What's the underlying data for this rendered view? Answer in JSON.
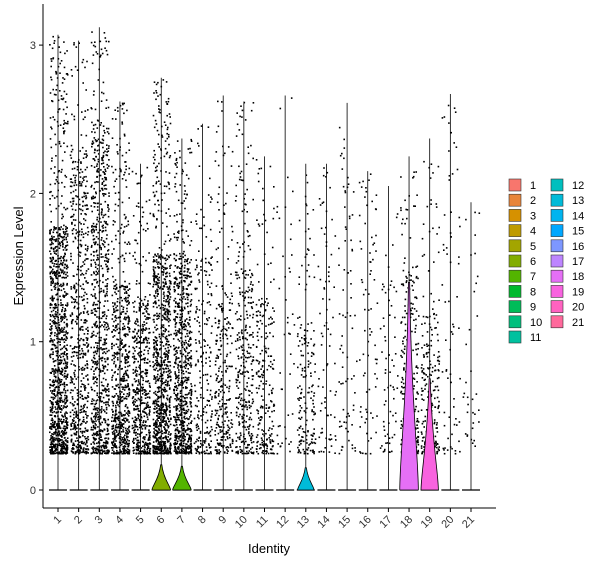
{
  "chart_data": {
    "type": "violin",
    "title": "",
    "xlabel": "Identity",
    "ylabel": "Expression Level",
    "ylim": [
      -0.15,
      3.15
    ],
    "yticks": [
      0,
      1,
      2,
      3
    ],
    "grid": false,
    "legend_position": "right",
    "legend_columns": 2,
    "categories": [
      "1",
      "2",
      "3",
      "4",
      "5",
      "6",
      "7",
      "8",
      "9",
      "10",
      "11",
      "12",
      "13",
      "14",
      "15",
      "16",
      "17",
      "18",
      "19",
      "20",
      "21"
    ],
    "colors": [
      "#F8766D",
      "#E8853A",
      "#D69100",
      "#BF9B00",
      "#A3A500",
      "#82AD00",
      "#53B400",
      "#00B92E",
      "#00BC59",
      "#00BF7D",
      "#00C19F",
      "#00BFBE",
      "#00BBD8",
      "#00B4EF",
      "#00A8FF",
      "#7D97FF",
      "#BD85FF",
      "#E56FF6",
      "#F863DF",
      "#FF62C0",
      "#FF699C"
    ],
    "series": [
      {
        "name": "1",
        "max": 3.07,
        "density": 1.0,
        "upper": 1.8,
        "violin_width": 0,
        "violin_height": 0
      },
      {
        "name": "2",
        "max": 3.03,
        "density": 0.55,
        "upper": 2.3,
        "violin_width": 0,
        "violin_height": 0
      },
      {
        "name": "3",
        "max": 3.12,
        "density": 0.7,
        "upper": 2.5,
        "violin_width": 0,
        "violin_height": 0
      },
      {
        "name": "4",
        "max": 2.62,
        "density": 0.6,
        "upper": 1.4,
        "violin_width": 0,
        "violin_height": 0
      },
      {
        "name": "5",
        "max": 2.2,
        "density": 0.45,
        "upper": 1.3,
        "violin_width": 0,
        "violin_height": 0
      },
      {
        "name": "6",
        "max": 2.78,
        "density": 0.85,
        "upper": 1.6,
        "violin_width": 0.45,
        "violin_height": 0.17
      },
      {
        "name": "7",
        "max": 2.37,
        "density": 0.7,
        "upper": 1.6,
        "violin_width": 0.45,
        "violin_height": 0.16
      },
      {
        "name": "8",
        "max": 2.47,
        "density": 0.2,
        "upper": 1.6,
        "violin_width": 0,
        "violin_height": 0
      },
      {
        "name": "9",
        "max": 2.66,
        "density": 0.25,
        "upper": 1.4,
        "violin_width": 0,
        "violin_height": 0
      },
      {
        "name": "10",
        "max": 2.62,
        "density": 0.3,
        "upper": 1.5,
        "violin_width": 0,
        "violin_height": 0
      },
      {
        "name": "11",
        "max": 2.25,
        "density": 0.2,
        "upper": 1.3,
        "violin_width": 0,
        "violin_height": 0
      },
      {
        "name": "12",
        "max": 2.66,
        "density": 0.03,
        "upper": 2.3,
        "violin_width": 0,
        "violin_height": 0
      },
      {
        "name": "13",
        "max": 2.2,
        "density": 0.15,
        "upper": 1.1,
        "violin_width": 0.4,
        "violin_height": 0.15
      },
      {
        "name": "14",
        "max": 2.2,
        "density": 0.06,
        "upper": 2.2,
        "violin_width": 0,
        "violin_height": 0
      },
      {
        "name": "15",
        "max": 2.61,
        "density": 0.06,
        "upper": 2.4,
        "violin_width": 0,
        "violin_height": 0
      },
      {
        "name": "16",
        "max": 2.15,
        "density": 0.06,
        "upper": 2.1,
        "violin_width": 0,
        "violin_height": 0
      },
      {
        "name": "17",
        "max": 2.05,
        "density": 0.05,
        "upper": 1.5,
        "violin_width": 0,
        "violin_height": 0
      },
      {
        "name": "18",
        "max": 2.25,
        "density": 0.25,
        "upper": 1.5,
        "violin_width": 0.45,
        "violin_height": 1.4
      },
      {
        "name": "19",
        "max": 2.37,
        "density": 0.2,
        "upper": 1.2,
        "violin_width": 0.42,
        "violin_height": 0.75
      },
      {
        "name": "20",
        "max": 2.67,
        "density": 0.05,
        "upper": 2.6,
        "violin_width": 0,
        "violin_height": 0
      },
      {
        "name": "21",
        "max": 1.94,
        "density": 0.02,
        "upper": 1.9,
        "violin_width": 0,
        "violin_height": 0
      }
    ]
  }
}
